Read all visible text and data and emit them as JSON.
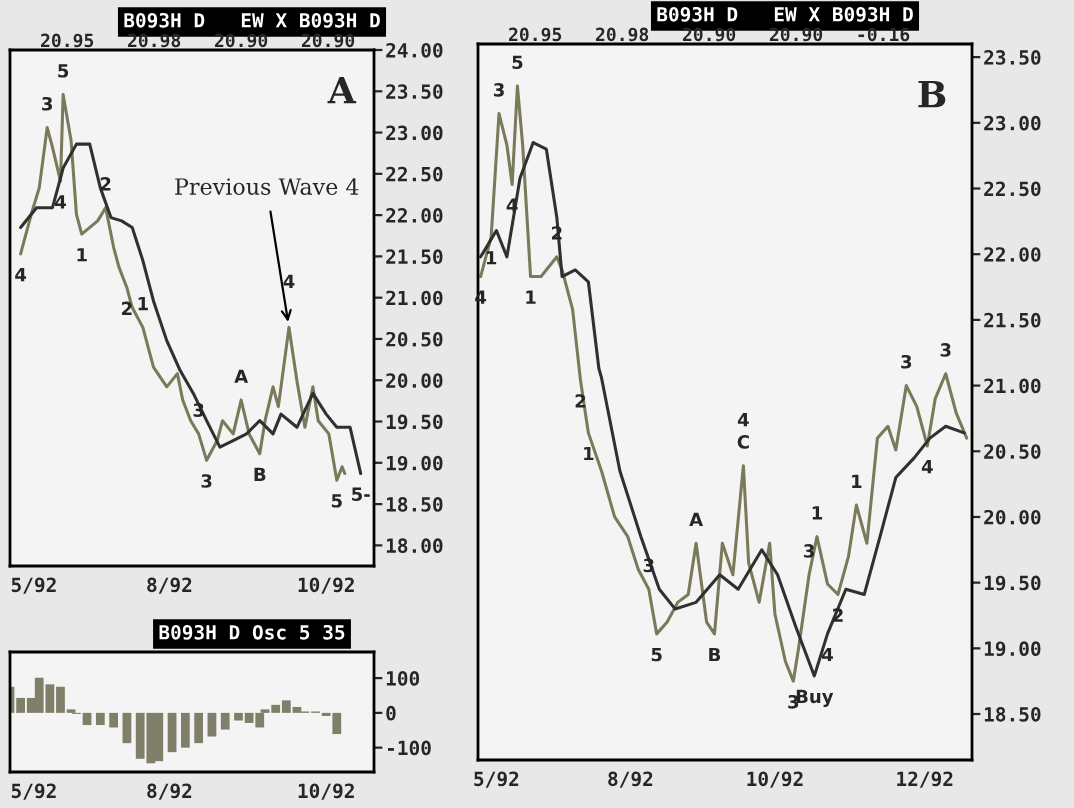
{
  "chart_data": [
    {
      "type": "line",
      "title": "B093H D   EW X B093H D",
      "subtitle": "20.95   20.98   20.90   20.90",
      "series": [
        {
          "color": "#7a7a5a",
          "x": [
            "1992-06-05",
            "1992-06-09",
            "1992-06-12",
            "1992-06-15",
            "1992-06-17",
            "1992-06-20",
            "1992-06-21",
            "1992-06-24",
            "1992-06-26",
            "1992-06-28",
            "1992-07-04",
            "1992-07-07",
            "1992-07-10",
            "1992-07-12",
            "1992-07-15",
            "1992-07-17",
            "1992-07-21",
            "1992-07-25",
            "1992-07-30",
            "1992-08-03",
            "1992-08-05",
            "1992-08-08",
            "1992-08-11",
            "1992-08-14",
            "1992-08-18",
            "1992-08-20",
            "1992-08-24",
            "1992-08-27",
            "1992-08-30",
            "1992-09-03",
            "1992-09-05",
            "1992-09-08",
            "1992-09-10",
            "1992-09-14",
            "1992-09-17",
            "1992-09-20",
            "1992-09-23",
            "1992-09-25",
            "1992-09-29",
            "1992-10-02",
            "1992-10-04",
            "1992-10-05"
          ],
          "values": [
            21.53,
            22.01,
            22.33,
            23.06,
            22.82,
            22.41,
            23.46,
            22.9,
            22.01,
            21.77,
            21.93,
            22.09,
            21.61,
            21.37,
            21.12,
            20.88,
            20.64,
            20.16,
            19.92,
            20.08,
            19.76,
            19.51,
            19.35,
            19.03,
            19.27,
            19.51,
            19.35,
            19.76,
            19.35,
            19.11,
            19.51,
            19.92,
            19.68,
            20.64,
            19.99,
            19.43,
            19.92,
            19.51,
            19.35,
            18.79,
            18.95,
            18.87
          ]
        },
        {
          "color": "#303030",
          "x": [
            "1992-06-05",
            "1992-06-11",
            "1992-06-17",
            "1992-06-21",
            "1992-06-26",
            "1992-07-01",
            "1992-07-05",
            "1992-07-09",
            "1992-07-13",
            "1992-07-17",
            "1992-07-21",
            "1992-07-25",
            "1992-07-30",
            "1992-08-04",
            "1992-08-09",
            "1992-08-14",
            "1992-08-19",
            "1992-08-24",
            "1992-08-29",
            "1992-09-03",
            "1992-09-08",
            "1992-09-11",
            "1992-09-17",
            "1992-09-23",
            "1992-09-28",
            "1992-10-02",
            "1992-10-07",
            "1992-10-11"
          ],
          "values": [
            21.85,
            22.09,
            22.09,
            22.57,
            22.86,
            22.86,
            22.33,
            21.97,
            21.93,
            21.85,
            21.45,
            20.96,
            20.48,
            20.12,
            19.84,
            19.51,
            19.19,
            19.27,
            19.35,
            19.51,
            19.35,
            19.59,
            19.43,
            19.84,
            19.59,
            19.43,
            19.43,
            18.87
          ]
        }
      ],
      "xlim": [
        "1992-06-01",
        "1992-10-16"
      ],
      "xticks": [
        {
          "value": "1992-06-10",
          "label": "5/92"
        },
        {
          "value": "1992-07-31",
          "label": "8/92"
        },
        {
          "value": "1992-09-28",
          "label": "10/92"
        }
      ],
      "ylim": [
        17.75,
        24.0
      ],
      "yticks": [
        {
          "value": 18.0,
          "label": "18.00"
        },
        {
          "value": 18.5,
          "label": "18.50"
        },
        {
          "value": 19.0,
          "label": "19.00"
        },
        {
          "value": 19.5,
          "label": "19.50"
        },
        {
          "value": 20.0,
          "label": "20.00"
        },
        {
          "value": 20.5,
          "label": "20.50"
        },
        {
          "value": 21.0,
          "label": "21.00"
        },
        {
          "value": 21.5,
          "label": "21.50"
        },
        {
          "value": 22.0,
          "label": "22.00"
        },
        {
          "value": 22.5,
          "label": "22.50"
        },
        {
          "value": 23.0,
          "label": "23.00"
        },
        {
          "value": 23.5,
          "label": "23.50"
        },
        {
          "value": 24.0,
          "label": "24.00"
        }
      ],
      "grid": false,
      "legend": false,
      "annotations": [
        "A",
        {
          "text": "Previous Wave 4",
          "x": "1992-09-14",
          "y": 20.64
        },
        {
          "text": "4",
          "x": "1992-06-05",
          "y": 21.53
        },
        {
          "text": "3",
          "x": "1992-06-15",
          "y": 23.06
        },
        {
          "text": "5",
          "x": "1992-06-21",
          "y": 23.46
        },
        {
          "text": "4",
          "x": "1992-06-20",
          "y": 22.41
        },
        {
          "text": "1",
          "x": "1992-06-28",
          "y": 21.77
        },
        {
          "text": "2",
          "x": "1992-07-07",
          "y": 22.09
        },
        {
          "text": "2",
          "x": "1992-07-15",
          "y": 21.12
        },
        {
          "text": "1",
          "x": "1992-07-21",
          "y": 20.64
        },
        {
          "text": "3",
          "x": "1992-08-11",
          "y": 19.35
        },
        {
          "text": "3",
          "x": "1992-08-14",
          "y": 19.03
        },
        {
          "text": "A",
          "x": "1992-08-27",
          "y": 19.76
        },
        {
          "text": "B",
          "x": "1992-09-03",
          "y": 19.11
        },
        {
          "text": "4",
          "x": "1992-09-14",
          "y": 20.64
        },
        {
          "text": "5",
          "x": "1992-10-02",
          "y": 18.79
        },
        {
          "text": "5-",
          "x": "1992-10-11",
          "y": 18.87
        }
      ]
    },
    {
      "type": "line",
      "title": "B093H D   EW X B093H D",
      "subtitle": "20.95   20.98   20.90   20.90   -0.16",
      "series": [
        {
          "color": "#7a7a5a",
          "x": [
            "1992-06-02",
            "1992-06-06",
            "1992-06-09",
            "1992-06-12",
            "1992-06-14",
            "1992-06-16",
            "1992-06-18",
            "1992-06-21",
            "1992-06-25",
            "1992-07-01",
            "1992-07-03",
            "1992-07-07",
            "1992-07-10",
            "1992-07-13",
            "1992-07-18",
            "1992-07-23",
            "1992-07-28",
            "1992-08-01",
            "1992-08-05",
            "1992-08-08",
            "1992-08-12",
            "1992-08-16",
            "1992-08-20",
            "1992-08-23",
            "1992-08-27",
            "1992-08-30",
            "1992-09-02",
            "1992-09-06",
            "1992-09-10",
            "1992-09-12",
            "1992-09-16",
            "1992-09-20",
            "1992-09-22",
            "1992-09-26",
            "1992-09-29",
            "1992-10-01",
            "1992-10-05",
            "1992-10-08",
            "1992-10-12",
            "1992-10-16",
            "1992-10-20",
            "1992-10-23",
            "1992-10-27",
            "1992-10-31",
            "1992-11-04",
            "1992-11-07",
            "1992-11-11",
            "1992-11-15",
            "1992-11-19",
            "1992-11-22",
            "1992-11-26",
            "1992-11-30",
            "1992-12-04"
          ],
          "values": [
            21.83,
            22.13,
            23.07,
            22.83,
            22.53,
            23.28,
            22.83,
            21.83,
            21.83,
            21.98,
            21.88,
            21.58,
            21.04,
            20.64,
            20.35,
            20.0,
            19.85,
            19.6,
            19.45,
            19.11,
            19.2,
            19.35,
            19.41,
            19.8,
            19.2,
            19.11,
            19.8,
            19.56,
            20.39,
            19.65,
            19.35,
            19.8,
            19.26,
            18.9,
            18.75,
            19.0,
            19.56,
            19.85,
            19.49,
            19.41,
            19.7,
            20.09,
            19.8,
            20.6,
            20.69,
            20.51,
            21.0,
            20.84,
            20.54,
            20.9,
            21.09,
            20.79,
            20.6
          ]
        },
        {
          "color": "#303030",
          "x": [
            "1992-06-02",
            "1992-06-08",
            "1992-06-12",
            "1992-06-17",
            "1992-06-22",
            "1992-06-27",
            "1992-07-01",
            "1992-07-03",
            "1992-07-08",
            "1992-07-13",
            "1992-07-17",
            "1992-07-18",
            "1992-07-25",
            "1992-08-02",
            "1992-08-09",
            "1992-08-15",
            "1992-08-23",
            "1992-09-01",
            "1992-09-08",
            "1992-09-17",
            "1992-09-23",
            "1992-09-30",
            "1992-10-07",
            "1992-10-12",
            "1992-10-19",
            "1992-10-26",
            "1992-11-01",
            "1992-11-07",
            "1992-11-14",
            "1992-11-20",
            "1992-11-26",
            "1992-12-03"
          ],
          "values": [
            21.98,
            22.18,
            21.98,
            22.58,
            22.85,
            22.8,
            22.28,
            21.83,
            21.88,
            21.79,
            21.13,
            21.06,
            20.35,
            19.85,
            19.45,
            19.3,
            19.35,
            19.56,
            19.45,
            19.75,
            19.56,
            19.16,
            18.79,
            19.11,
            19.45,
            19.41,
            19.85,
            20.3,
            20.45,
            20.6,
            20.69,
            20.64
          ]
        }
      ],
      "xlim": [
        "1992-06-01",
        "1992-12-06"
      ],
      "xticks": [
        {
          "value": "1992-06-08",
          "label": "5/92"
        },
        {
          "value": "1992-07-29",
          "label": "8/92"
        },
        {
          "value": "1992-09-22",
          "label": "10/92"
        },
        {
          "value": "1992-11-18",
          "label": "12/92"
        }
      ],
      "ylim": [
        18.15,
        23.6
      ],
      "yticks": [
        {
          "value": 18.5,
          "label": "18.50"
        },
        {
          "value": 19.0,
          "label": "19.00"
        },
        {
          "value": 19.5,
          "label": "19.50"
        },
        {
          "value": 20.0,
          "label": "20.00"
        },
        {
          "value": 20.5,
          "label": "20.50"
        },
        {
          "value": 21.0,
          "label": "21.00"
        },
        {
          "value": 21.5,
          "label": "21.50"
        },
        {
          "value": 22.0,
          "label": "22.00"
        },
        {
          "value": 22.5,
          "label": "22.50"
        },
        {
          "value": 23.0,
          "label": "23.00"
        },
        {
          "value": 23.5,
          "label": "23.50"
        }
      ],
      "grid": false,
      "legend": false,
      "annotations": [
        "B",
        {
          "text": "Buy",
          "x": "1992-10-07",
          "y": 18.79
        },
        {
          "text": "5",
          "x": "1992-06-16",
          "y": 23.28
        },
        {
          "text": "3",
          "x": "1992-06-09",
          "y": 23.07
        },
        {
          "text": "1",
          "x": "1992-06-06",
          "y": 22.13
        },
        {
          "text": "4",
          "x": "1992-06-02",
          "y": 21.83
        },
        {
          "text": "4",
          "x": "1992-06-14",
          "y": 22.53
        },
        {
          "text": "1",
          "x": "1992-06-21",
          "y": 21.83
        },
        {
          "text": "2",
          "x": "1992-07-01",
          "y": 21.98
        },
        {
          "text": "2",
          "x": "1992-07-10",
          "y": 21.04
        },
        {
          "text": "1",
          "x": "1992-07-13",
          "y": 20.64
        },
        {
          "text": "3",
          "x": "1992-08-05",
          "y": 19.45
        },
        {
          "text": "5",
          "x": "1992-08-08",
          "y": 19.11
        },
        {
          "text": "A",
          "x": "1992-08-23",
          "y": 19.8
        },
        {
          "text": "B",
          "x": "1992-08-30",
          "y": 19.11
        },
        {
          "text": "C",
          "x": "1992-09-10",
          "y": 20.39
        },
        {
          "text": "4",
          "x": "1992-09-10",
          "y": 20.39
        },
        {
          "text": "3",
          "x": "1992-09-29",
          "y": 18.75
        },
        {
          "text": "3",
          "x": "1992-10-05",
          "y": 19.56
        },
        {
          "text": "1",
          "x": "1992-10-08",
          "y": 19.85
        },
        {
          "text": "4",
          "x": "1992-10-12",
          "y": 19.11
        },
        {
          "text": "2",
          "x": "1992-10-16",
          "y": 19.41
        },
        {
          "text": "1",
          "x": "1992-10-23",
          "y": 20.09
        },
        {
          "text": "3",
          "x": "1992-11-11",
          "y": 21.0
        },
        {
          "text": "4",
          "x": "1992-11-19",
          "y": 20.54
        },
        {
          "text": "3",
          "x": "1992-11-26",
          "y": 21.09
        }
      ]
    },
    {
      "type": "bar",
      "title": "B093H D Osc 5 35",
      "series": [
        {
          "color": "#7f7f6a",
          "x": [
            "1992-06-01",
            "1992-06-05",
            "1992-06-09",
            "1992-06-12",
            "1992-06-16",
            "1992-06-20",
            "1992-06-24",
            "1992-06-26",
            "1992-06-30",
            "1992-07-05",
            "1992-07-10",
            "1992-07-15",
            "1992-07-20",
            "1992-07-24",
            "1992-07-27",
            "1992-08-01",
            "1992-08-06",
            "1992-08-11",
            "1992-08-16",
            "1992-08-21",
            "1992-08-26",
            "1992-08-30",
            "1992-09-03",
            "1992-09-05",
            "1992-09-09",
            "1992-09-13",
            "1992-09-17",
            "1992-09-20",
            "1992-09-24",
            "1992-09-28",
            "1992-10-02"
          ],
          "values": [
            75,
            43,
            43,
            101,
            82,
            75,
            10,
            -3,
            -35,
            -35,
            -42,
            -87,
            -132,
            -145,
            -139,
            -113,
            -100,
            -87,
            -68,
            -48,
            -22,
            -29,
            -42,
            10,
            23,
            36,
            17,
            4,
            4,
            -9,
            -61
          ]
        }
      ],
      "xlim": [
        "1992-06-01",
        "1992-10-16"
      ],
      "xticks": [
        {
          "value": "1992-06-10",
          "label": "5/92"
        },
        {
          "value": "1992-07-31",
          "label": "8/92"
        },
        {
          "value": "1992-09-28",
          "label": "10/92"
        }
      ],
      "ylim": [
        -170,
        175
      ],
      "yticks": [
        100,
        0,
        {
          "value": -100,
          "label": "-100"
        }
      ],
      "grid": false,
      "legend": false
    }
  ]
}
